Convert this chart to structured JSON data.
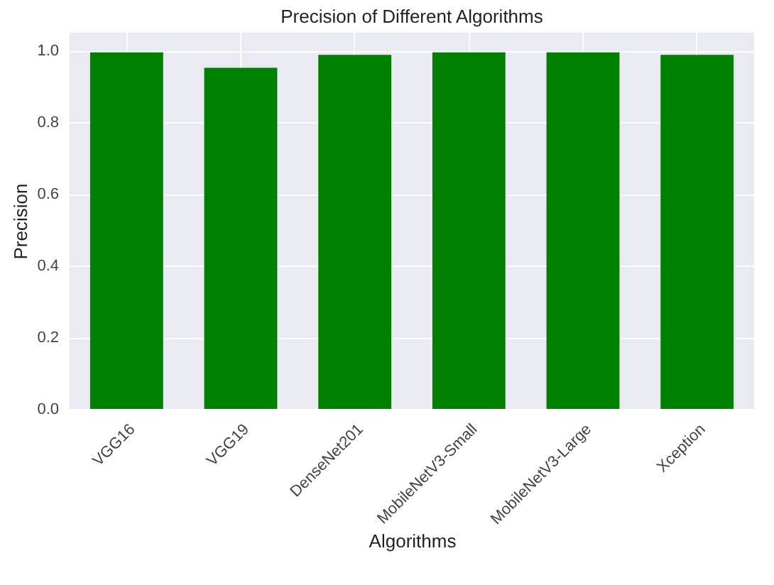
{
  "chart_data": {
    "type": "bar",
    "title": "Precision of Different Algorithms",
    "xlabel": "Algorithms",
    "ylabel": "Precision",
    "categories": [
      "VGG16",
      "VGG19",
      "DenseNet201",
      "MobileNetV3-Small",
      "MobileNetV3-Large",
      "Xception"
    ],
    "values": [
      0.995,
      0.952,
      0.988,
      0.995,
      0.995,
      0.988
    ],
    "color": "#008000",
    "ylim": [
      0,
      1.05
    ],
    "yticks": [
      {
        "value": 0,
        "label": "0.0"
      },
      0.2,
      0.4,
      0.6,
      0.8,
      {
        "value": 1,
        "label": "1.0"
      }
    ],
    "grid": true
  }
}
